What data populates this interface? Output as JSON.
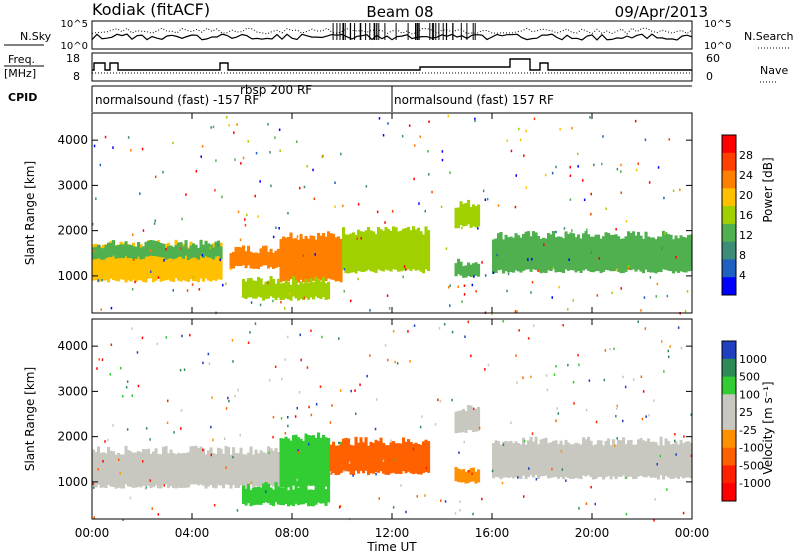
{
  "header": {
    "station": "Kodiak (fitACF)",
    "beam": "Beam 08",
    "date": "09/Apr/2013"
  },
  "noise_panel": {
    "left_label": "N.Sky",
    "right_label": "N.Search",
    "left_ticks": [
      "10^5",
      "10^0"
    ],
    "right_ticks": [
      "10^5",
      "10^0"
    ]
  },
  "freq_panel": {
    "left_label_line1": "Freq.",
    "left_label_line2": "[MHz]",
    "left_ticks": [
      "18",
      "8"
    ],
    "right_label": "Nave",
    "right_ticks": [
      "60",
      "0"
    ]
  },
  "cpid": {
    "label": "CPID",
    "segments": [
      {
        "text": "normalsound (fast) -157 RF",
        "start_hour": 0,
        "end_hour": 12
      },
      {
        "text": "rbsp 200 RF",
        "start_hour": 6,
        "end_hour": 8
      },
      {
        "text": "normalsound (fast) 157 RF",
        "start_hour": 12,
        "end_hour": 24
      }
    ]
  },
  "power_panel": {
    "ylabel": "Slant Range [km]",
    "yticks": [
      "1000",
      "2000",
      "3000",
      "4000"
    ],
    "colorbar_label": "Power [dB]",
    "colorbar_ticks": [
      "28",
      "24",
      "20",
      "16",
      "12",
      "8",
      "4"
    ],
    "colors": [
      "#ff0000",
      "#ff4000",
      "#ff8000",
      "#ffc000",
      "#a0d000",
      "#50b050",
      "#3c8c78",
      "#2060c0",
      "#0000ff"
    ]
  },
  "velocity_panel": {
    "ylabel": "Slant Range [km]",
    "yticks": [
      "1000",
      "2000",
      "3000",
      "4000"
    ],
    "colorbar_label": "Velocity [m s⁻¹]",
    "colorbar_ticks": [
      "1000",
      "500",
      "100",
      "25",
      "-25",
      "-100",
      "-500",
      "-1000"
    ],
    "colors": [
      "#2040c0",
      "#2e8b57",
      "#32cd32",
      "#c8c8c0",
      "#c8c8c0",
      "#ff9000",
      "#ff6000",
      "#ff2000",
      "#ff0000"
    ]
  },
  "x_axis": {
    "label": "Time UT",
    "ticks": [
      "00:00",
      "04:00",
      "08:00",
      "12:00",
      "16:00",
      "20:00",
      "00:00"
    ]
  },
  "chart_data": {
    "type": "heatmap",
    "title": "Kodiak (fitACF) Beam 08 09/Apr/2013",
    "xlabel": "Time UT",
    "ylabel": "Slant Range [km]",
    "x_range_hours": [
      0,
      24
    ],
    "y_range_km": [
      180,
      4600
    ],
    "power_range_db": [
      0,
      30
    ],
    "velocity_range_ms": [
      -1000,
      1000
    ],
    "power_bands": [
      {
        "t_start": 0.0,
        "t_end": 5.2,
        "r_low": 900,
        "r_high": 1700,
        "power_db": 20
      },
      {
        "t_start": 0.0,
        "t_end": 5.2,
        "r_low": 1400,
        "r_high": 1700,
        "power_db": 12
      },
      {
        "t_start": 5.5,
        "t_end": 7.5,
        "r_low": 1200,
        "r_high": 1600,
        "power_db": 22
      },
      {
        "t_start": 7.5,
        "t_end": 10.0,
        "r_low": 900,
        "r_high": 1900,
        "power_db": 24
      },
      {
        "t_start": 10.0,
        "t_end": 13.5,
        "r_low": 1100,
        "r_high": 2000,
        "power_db": 16
      },
      {
        "t_start": 6.0,
        "t_end": 9.5,
        "r_low": 500,
        "r_high": 900,
        "power_db": 14
      },
      {
        "t_start": 14.5,
        "t_end": 15.5,
        "r_low": 1000,
        "r_high": 1300,
        "power_db": 10
      },
      {
        "t_start": 14.5,
        "t_end": 15.5,
        "r_low": 2100,
        "r_high": 2600,
        "power_db": 14
      },
      {
        "t_start": 16.0,
        "t_end": 24.0,
        "r_low": 1100,
        "r_high": 1900,
        "power_db": 12
      }
    ],
    "velocity_bands": [
      {
        "t_start": 0.0,
        "t_end": 7.5,
        "r_low": 900,
        "r_high": 1700,
        "velocity_ms": 0
      },
      {
        "t_start": 7.5,
        "t_end": 9.5,
        "r_low": 900,
        "r_high": 2000,
        "velocity_ms": 200
      },
      {
        "t_start": 9.5,
        "t_end": 13.5,
        "r_low": 1200,
        "r_high": 1900,
        "velocity_ms": -300
      },
      {
        "t_start": 6.0,
        "t_end": 9.5,
        "r_low": 500,
        "r_high": 900,
        "velocity_ms": 150
      },
      {
        "t_start": 14.5,
        "t_end": 15.5,
        "r_low": 1000,
        "r_high": 1300,
        "velocity_ms": -200
      },
      {
        "t_start": 14.5,
        "t_end": 15.5,
        "r_low": 2100,
        "r_high": 2600,
        "velocity_ms": 0
      },
      {
        "t_start": 16.0,
        "t_end": 24.0,
        "r_low": 1100,
        "r_high": 1900,
        "velocity_ms": 0
      }
    ]
  }
}
